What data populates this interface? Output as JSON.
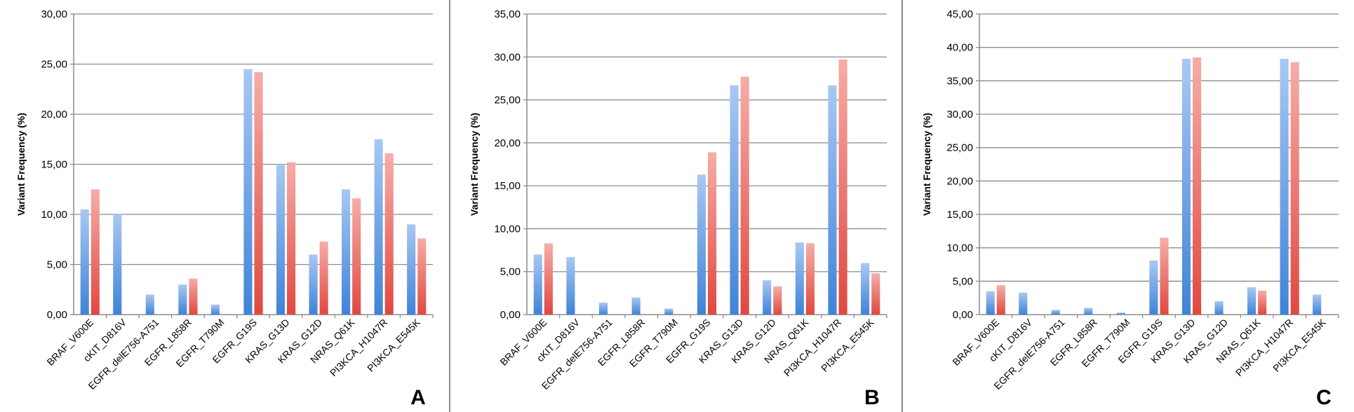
{
  "chart_data": [
    {
      "type": "bar",
      "panel_letter": "A",
      "ylabel": "Variant Frequency (%)",
      "ylim": [
        0,
        30
      ],
      "yticks": [
        "0,00",
        "5,00",
        "10,00",
        "15,00",
        "20,00",
        "25,00",
        "30,00"
      ],
      "grid": true,
      "categories": [
        "BRAF_V600E",
        "cKIT_D816V",
        "EGFR_delE756-A751",
        "EGFR_L858R",
        "EGFR_T790M",
        "EGFR_G19S",
        "KRAS_G13D",
        "KRAS_G12D",
        "NRAS_Q61K",
        "PI3KCA_H1047R",
        "PI3KCA_E545K"
      ],
      "series": [
        {
          "color": "#6FA0E0",
          "values": [
            10.5,
            10.0,
            2.0,
            3.0,
            1.0,
            24.5,
            15.0,
            6.0,
            12.5,
            17.5,
            9.0
          ]
        },
        {
          "color": "#E8706A",
          "values": [
            12.5,
            0,
            0,
            3.6,
            0,
            24.2,
            15.2,
            7.3,
            11.6,
            16.1,
            7.6
          ]
        }
      ]
    },
    {
      "type": "bar",
      "panel_letter": "B",
      "ylabel": "Variant Frequency (%)",
      "ylim": [
        0,
        35
      ],
      "yticks": [
        "0,00",
        "5,00",
        "10,00",
        "15,00",
        "20,00",
        "25,00",
        "30,00",
        "35,00"
      ],
      "grid": true,
      "categories": [
        "BRAF_V600E",
        "cKIT_D816V",
        "EGFR_delE756-A751",
        "EGFR_L858R",
        "EGFR_T790M",
        "EGFR_G19S",
        "KRAS_G13D",
        "KRAS_G12D",
        "NRAS_Q61K",
        "PI3KCA_H1047R",
        "PI3KCA_E545K"
      ],
      "series": [
        {
          "color": "#6FA0E0",
          "values": [
            7.0,
            6.7,
            1.4,
            2.0,
            0.7,
            16.3,
            26.7,
            4.0,
            8.4,
            26.7,
            6.0
          ]
        },
        {
          "color": "#E8706A",
          "values": [
            8.3,
            0,
            0,
            0,
            0,
            18.9,
            27.7,
            3.3,
            8.3,
            29.7,
            4.8
          ]
        }
      ]
    },
    {
      "type": "bar",
      "panel_letter": "C",
      "ylabel": "Variant Frequency (%)",
      "ylim": [
        0,
        45
      ],
      "yticks": [
        "0,00",
        "5,00",
        "10,00",
        "15,00",
        "20,00",
        "25,00",
        "30,00",
        "35,00",
        "40,00",
        "45,00"
      ],
      "grid": true,
      "categories": [
        "BRAF_V600E",
        "cKIT_D816V",
        "EGFR_delE756-A751",
        "EGFR_L858R",
        "EGFR_T790M",
        "EGFR_G19S",
        "KRAS_G13D",
        "KRAS_G12D",
        "NRAS_Q61K",
        "PI3KCA_H1047R",
        "PI3KCA_E545K"
      ],
      "series": [
        {
          "color": "#6FA0E0",
          "values": [
            3.5,
            3.3,
            0.7,
            1.0,
            0.3,
            8.1,
            38.3,
            2.0,
            4.1,
            38.3,
            3.0
          ]
        },
        {
          "color": "#E8706A",
          "values": [
            4.4,
            0,
            0,
            0,
            0,
            11.5,
            38.5,
            0,
            3.6,
            37.8,
            0
          ]
        }
      ]
    }
  ]
}
